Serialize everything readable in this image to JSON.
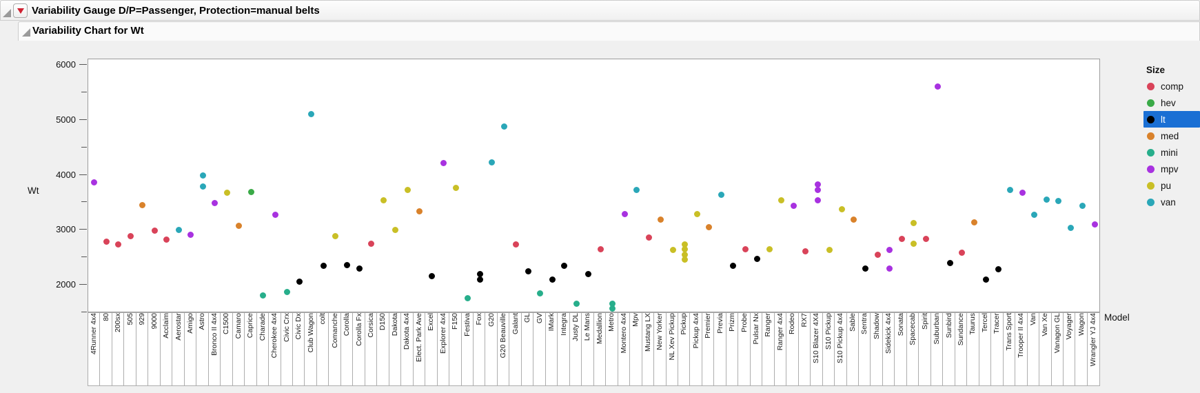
{
  "header": {
    "outline1_title": "Variability Gauge D/P=Passenger, Protection=manual belts",
    "outline2_title": "Variability Chart for Wt"
  },
  "chart_data": {
    "type": "scatter",
    "title": "Variability Chart for Wt",
    "ylabel": "Wt",
    "xlabel": "Model",
    "ylim": [
      1480,
      6100
    ],
    "y_ticks_major": [
      6000,
      5000,
      4000,
      3000,
      2000
    ],
    "y_ticks_minor": [
      5500,
      4500,
      3500,
      2500,
      1500
    ],
    "grid": false,
    "legend": {
      "title": "Size",
      "position": "right",
      "selected": "lt",
      "items": [
        {
          "label": "comp",
          "color": "#d94359"
        },
        {
          "label": "hev",
          "color": "#3aaa47"
        },
        {
          "label": "lt",
          "color": "#000000"
        },
        {
          "label": "med",
          "color": "#d9822b"
        },
        {
          "label": "mini",
          "color": "#27ae8b"
        },
        {
          "label": "mpv",
          "color": "#a832e0"
        },
        {
          "label": "pu",
          "color": "#c9bf26"
        },
        {
          "label": "van",
          "color": "#2aa7b8"
        }
      ]
    },
    "points": [
      {
        "model": "4Runner 4x4",
        "size": "mpv",
        "wt": [
          3860
        ]
      },
      {
        "model": "80",
        "size": "comp",
        "wt": [
          2780
        ]
      },
      {
        "model": "200sx",
        "size": "comp",
        "wt": [
          2730
        ]
      },
      {
        "model": "505",
        "size": "comp",
        "wt": [
          2880
        ]
      },
      {
        "model": "929",
        "size": "med",
        "wt": [
          3450
        ]
      },
      {
        "model": "9000",
        "size": "comp",
        "wt": [
          2980
        ]
      },
      {
        "model": "Acclaim",
        "size": "comp",
        "wt": [
          2820
        ]
      },
      {
        "model": "Aerostar",
        "size": "van",
        "wt": [
          3000
        ]
      },
      {
        "model": "Amigo",
        "size": "mpv",
        "wt": [
          2910
        ]
      },
      {
        "model": "Astro",
        "size": "van",
        "wt": [
          3990,
          3790
        ]
      },
      {
        "model": "Bronco II 4x4",
        "size": "mpv",
        "wt": [
          3480
        ]
      },
      {
        "model": "C1500",
        "size": "pu",
        "wt": [
          3680
        ]
      },
      {
        "model": "Camaro",
        "size": "med",
        "wt": [
          3070
        ]
      },
      {
        "model": "Caprice",
        "size": "hev",
        "wt": [
          3690
        ]
      },
      {
        "model": "Charade",
        "size": "mini",
        "wt": [
          1800
        ]
      },
      {
        "model": "Cherokee 4x4",
        "size": "mpv",
        "wt": [
          3270
        ]
      },
      {
        "model": "Civic Crx",
        "size": "mini",
        "wt": [
          1870
        ]
      },
      {
        "model": "Civic Dx",
        "size": "lt",
        "wt": [
          2060
        ]
      },
      {
        "model": "Club Wagon",
        "size": "van",
        "wt": [
          5100
        ]
      },
      {
        "model": "colt",
        "size": "lt",
        "wt": [
          2340
        ]
      },
      {
        "model": "Comanche",
        "size": "pu",
        "wt": [
          2890
        ]
      },
      {
        "model": "Corolla",
        "size": "lt",
        "wt": [
          2360
        ]
      },
      {
        "model": "Corolla Fx",
        "size": "lt",
        "wt": [
          2300
        ]
      },
      {
        "model": "Corsica",
        "size": "comp",
        "wt": [
          2740
        ]
      },
      {
        "model": "D150",
        "size": "pu",
        "wt": [
          3540
        ]
      },
      {
        "model": "Dakota",
        "size": "pu",
        "wt": [
          3000
        ]
      },
      {
        "model": "Dakota 4x4",
        "size": "pu",
        "wt": [
          3730
        ]
      },
      {
        "model": "Elect. Park Ave",
        "size": "med",
        "wt": [
          3340
        ]
      },
      {
        "model": "Excel",
        "size": "lt",
        "wt": [
          2160
        ]
      },
      {
        "model": "Explorer 4x4",
        "size": "mpv",
        "wt": [
          4210
        ]
      },
      {
        "model": "F150",
        "size": "pu",
        "wt": [
          3760
        ]
      },
      {
        "model": "Festiva",
        "size": "mini",
        "wt": [
          1760
        ]
      },
      {
        "model": "Fox",
        "size": "lt",
        "wt": [
          2190,
          2090
        ]
      },
      {
        "model": "G20",
        "size": "van",
        "wt": [
          4230
        ]
      },
      {
        "model": "G20 Beauville",
        "size": "van",
        "wt": [
          4880
        ]
      },
      {
        "model": "Galant",
        "size": "comp",
        "wt": [
          2730
        ]
      },
      {
        "model": "GL",
        "size": "lt",
        "wt": [
          2240
        ]
      },
      {
        "model": "GV",
        "size": "mini",
        "wt": [
          1840
        ]
      },
      {
        "model": "IMark",
        "size": "lt",
        "wt": [
          2090
        ]
      },
      {
        "model": "Integra",
        "size": "lt",
        "wt": [
          2340
        ]
      },
      {
        "model": "Justy DL",
        "size": "mini",
        "wt": [
          1650
        ]
      },
      {
        "model": "Le Mans",
        "size": "lt",
        "wt": [
          2190
        ]
      },
      {
        "model": "Medallion",
        "size": "comp",
        "wt": [
          2650
        ]
      },
      {
        "model": "Metro",
        "size": "mini",
        "wt": [
          1650,
          1570
        ]
      },
      {
        "model": "Montero 4x4",
        "size": "mpv",
        "wt": [
          3290
        ]
      },
      {
        "model": "Mpv",
        "size": "van",
        "wt": [
          3720
        ]
      },
      {
        "model": "Mustang LX",
        "size": "comp",
        "wt": [
          2860
        ]
      },
      {
        "model": "New Yorker",
        "size": "med",
        "wt": [
          3180
        ]
      },
      {
        "model": "NL Xev Pickup",
        "size": "pu",
        "wt": [
          2630
        ]
      },
      {
        "model": "Pickup",
        "size": "pu",
        "wt": [
          2730,
          2640,
          2540,
          2460
        ]
      },
      {
        "model": "Pickup 4x4",
        "size": "pu",
        "wt": [
          3280
        ]
      },
      {
        "model": "Premier",
        "size": "med",
        "wt": [
          3050
        ]
      },
      {
        "model": "Previa",
        "size": "van",
        "wt": [
          3640
        ]
      },
      {
        "model": "Prizm",
        "size": "lt",
        "wt": [
          2340
        ]
      },
      {
        "model": "Probe",
        "size": "comp",
        "wt": [
          2640
        ]
      },
      {
        "model": "Pulsar Nx",
        "size": "lt",
        "wt": [
          2470
        ]
      },
      {
        "model": "Ranger",
        "size": "pu",
        "wt": [
          2650
        ]
      },
      {
        "model": "Ranger 4x4",
        "size": "pu",
        "wt": [
          3530
        ]
      },
      {
        "model": "Rodeo",
        "size": "mpv",
        "wt": [
          3440
        ]
      },
      {
        "model": "RX7",
        "size": "comp",
        "wt": [
          2610
        ]
      },
      {
        "model": "S10 Blazer 4X4",
        "size": "mpv",
        "wt": [
          3830,
          3730,
          3530
        ]
      },
      {
        "model": "S10 Pickup",
        "size": "pu",
        "wt": [
          2630
        ]
      },
      {
        "model": "S10 Pickup 4x4",
        "size": "pu",
        "wt": [
          3370
        ]
      },
      {
        "model": "Sable",
        "size": "med",
        "wt": [
          3180
        ]
      },
      {
        "model": "Sentra",
        "size": "lt",
        "wt": [
          2290
        ]
      },
      {
        "model": "Shadow",
        "size": "comp",
        "wt": [
          2540
        ]
      },
      {
        "model": "Sidekick 4x4",
        "size": "mpv",
        "wt": [
          2630,
          2290
        ]
      },
      {
        "model": "Sonata",
        "size": "comp",
        "wt": [
          2840
        ]
      },
      {
        "model": "Spacecab",
        "size": "pu",
        "wt": [
          3120,
          2750
        ]
      },
      {
        "model": "Spirit",
        "size": "comp",
        "wt": [
          2830
        ]
      },
      {
        "model": "Suburban",
        "size": "mpv",
        "wt": [
          5610
        ]
      },
      {
        "model": "Sunbird",
        "size": "lt",
        "wt": [
          2400
        ]
      },
      {
        "model": "Sundance",
        "size": "comp",
        "wt": [
          2580
        ]
      },
      {
        "model": "Taurus",
        "size": "med",
        "wt": [
          3130
        ]
      },
      {
        "model": "Tercel",
        "size": "lt",
        "wt": [
          2100
        ]
      },
      {
        "model": "Tracer",
        "size": "lt",
        "wt": [
          2280
        ]
      },
      {
        "model": "Trans Sport",
        "size": "van",
        "wt": [
          3730
        ]
      },
      {
        "model": "Trooper II 4x4",
        "size": "mpv",
        "wt": [
          3680
        ]
      },
      {
        "model": "Van",
        "size": "van",
        "wt": [
          3270
        ]
      },
      {
        "model": "Van Xe",
        "size": "van",
        "wt": [
          3550
        ]
      },
      {
        "model": "Vanagon GL",
        "size": "van",
        "wt": [
          3520
        ]
      },
      {
        "model": "Voyager",
        "size": "van",
        "wt": [
          3030
        ]
      },
      {
        "model": "Wagon",
        "size": "van",
        "wt": [
          3430
        ]
      },
      {
        "model": "Wrangler YJ 4x4",
        "size": "mpv",
        "wt": [
          3100
        ]
      }
    ]
  }
}
